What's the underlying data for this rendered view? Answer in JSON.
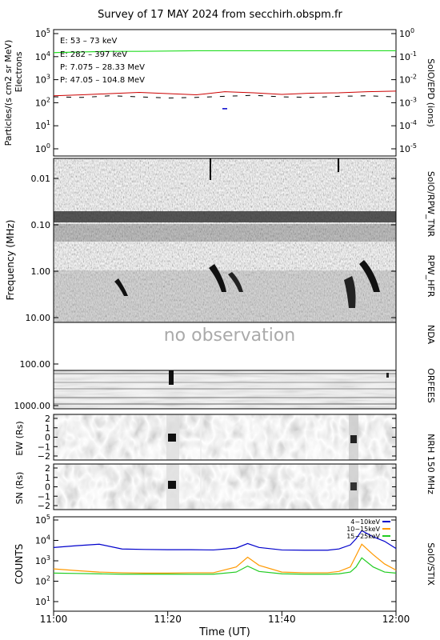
{
  "title": "Survey of 17 MAY 2024 from secchirh.obspm.fr",
  "time_axis": {
    "label": "Time (UT)",
    "ticks": [
      "11:00",
      "11:20",
      "11:40",
      "12:00"
    ]
  },
  "colors": {
    "epd_e1": "#22dd22",
    "epd_e2": "#cc0000",
    "epd_p1": "#000000",
    "epd_p2": "#0000cc",
    "stix_4_10": "#0000cc",
    "stix_10_15": "#ff9900",
    "stix_15_25": "#22cc22"
  },
  "panels": {
    "epd": {
      "ylabel_1": "Particles/(s cm2 sr MeV)",
      "ylabel_2": "Electrons",
      "right_label": "SolO/EPD (ions)",
      "yticks_left": [
        "10^5",
        "10^4",
        "10^3",
        "10^2",
        "10^1",
        "10^0"
      ],
      "yticks_right": [
        "10^0",
        "10^-1",
        "10^-2",
        "10^-3",
        "10^-4",
        "10^-5"
      ],
      "legend": [
        "E: 53 – 73 keV",
        "E: 282 – 397 keV",
        "P: 7.075 – 28.33 MeV",
        "P: 47.05 – 104.8 MeV"
      ]
    },
    "rpw": {
      "ylabel": "Frequency (MHz)",
      "yticks": [
        "0.01",
        "0.10",
        "1.00",
        "10.00"
      ],
      "right_label_1": "SolO/RPW_TNR",
      "right_label_2": "RPW_HFR"
    },
    "nda": {
      "message": "no observation",
      "right_label": "NDA"
    },
    "orfees": {
      "yticks": [
        "100.00",
        "1000.00"
      ],
      "right_label": "ORFEES"
    },
    "nrh": {
      "ew_label": "EW (Rs)",
      "sn_label": "SN (Rs)",
      "yticks": [
        "2",
        "1",
        "0",
        "−1",
        "−2"
      ],
      "right_label": "NRH 150 MHz"
    },
    "stix": {
      "ylabel": "COUNTS",
      "right_label": "SolO/STIX",
      "yticks": [
        "10^5",
        "10^4",
        "10^3",
        "10^2",
        "10^1"
      ],
      "legend": [
        "4−10keV",
        "10−15keV",
        "15−25keV"
      ]
    }
  },
  "chart_data": [
    {
      "type": "line",
      "title": "SolO/EPD",
      "ylog": true,
      "ylim": [
        0.5,
        100000
      ],
      "xlim": [
        "11:00",
        "12:00"
      ],
      "x": [
        "11:00",
        "11:05",
        "11:10",
        "11:15",
        "11:20",
        "11:25",
        "11:30",
        "11:35",
        "11:40",
        "11:45",
        "11:50",
        "11:55",
        "12:00"
      ],
      "series": [
        {
          "name": "E: 53 – 73 keV",
          "values": [
            15000,
            16000,
            17000,
            17000,
            17500,
            18000,
            18000,
            18000,
            18000,
            18000,
            18000,
            18000,
            18000
          ]
        },
        {
          "name": "E: 282 – 397 keV",
          "values": [
            200,
            220,
            250,
            280,
            250,
            220,
            300,
            270,
            230,
            260,
            270,
            300,
            320
          ]
        },
        {
          "name": "P: 7.075 – 28.33 MeV",
          "values": [
            180,
            170,
            200,
            180,
            160,
            170,
            190,
            210,
            180,
            170,
            190,
            200,
            180
          ]
        },
        {
          "name": "P: 47.05 – 104.8 MeV",
          "values": [
            null,
            null,
            null,
            null,
            null,
            null,
            55,
            null,
            null,
            null,
            null,
            null,
            null
          ]
        }
      ]
    },
    {
      "type": "line",
      "title": "SolO/STIX",
      "ylog": true,
      "ylim": [
        5,
        100000
      ],
      "xlim": [
        "11:00",
        "12:00"
      ],
      "x": [
        "11:00",
        "11:04",
        "11:08",
        "11:12",
        "11:16",
        "11:20",
        "11:24",
        "11:28",
        "11:32",
        "11:34",
        "11:36",
        "11:40",
        "11:44",
        "11:48",
        "11:50",
        "11:52",
        "11:53",
        "11:54",
        "11:56",
        "11:58",
        "12:00"
      ],
      "series": [
        {
          "name": "4−10keV",
          "values": [
            4500,
            5500,
            6500,
            3800,
            3600,
            3500,
            3500,
            3400,
            4200,
            7000,
            4500,
            3400,
            3300,
            3300,
            3800,
            6000,
            12000,
            30000,
            15000,
            9000,
            4000
          ]
        },
        {
          "name": "10−15keV",
          "values": [
            400,
            330,
            280,
            260,
            250,
            250,
            260,
            260,
            500,
            1500,
            600,
            280,
            260,
            260,
            300,
            500,
            1800,
            6500,
            2000,
            700,
            350
          ]
        },
        {
          "name": "15−25keV",
          "values": [
            250,
            240,
            230,
            220,
            220,
            220,
            220,
            220,
            280,
            550,
            300,
            230,
            220,
            220,
            230,
            280,
            500,
            1400,
            500,
            280,
            250
          ]
        }
      ]
    }
  ]
}
